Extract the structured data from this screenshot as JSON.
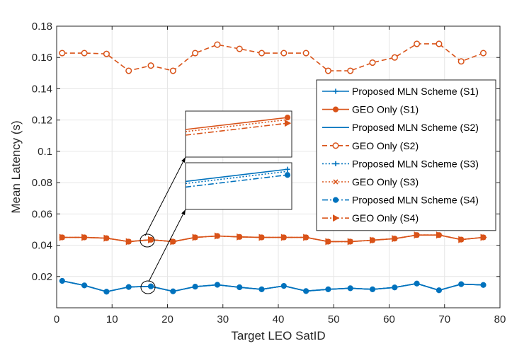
{
  "chart_data": {
    "type": "line",
    "title": "",
    "xlabel": "Target LEO SatID",
    "ylabel": "Mean Latency (s)",
    "xlim": [
      0,
      80
    ],
    "ylim": [
      0,
      0.18
    ],
    "xticks": [
      0,
      10,
      20,
      30,
      40,
      50,
      60,
      70,
      80
    ],
    "xtick_labels": [
      "0",
      "10",
      "20",
      "30",
      "40",
      "50",
      "60",
      "70",
      "80"
    ],
    "yticks": [
      0.02,
      0.04,
      0.06,
      0.08,
      0.1,
      0.12,
      0.14,
      0.16,
      0.18
    ],
    "ytick_labels": [
      "0.02",
      "0.04",
      "0.06",
      "0.08",
      "0.1",
      "0.12",
      "0.14",
      "0.16",
      "0.18"
    ],
    "grid": true,
    "legend_position": "right",
    "x": [
      1,
      5,
      9,
      13,
      17,
      21,
      25,
      29,
      33,
      37,
      41,
      45,
      49,
      53,
      57,
      61,
      65,
      69,
      73,
      77
    ],
    "series": [
      {
        "name": "Proposed MLN Scheme (S1)",
        "color": "#0072BD",
        "line": "solid",
        "marker": "plus",
        "values": [
          0.0172,
          0.0143,
          0.0103,
          0.0133,
          0.0137,
          0.0105,
          0.0135,
          0.0147,
          0.0131,
          0.0118,
          0.014,
          0.0107,
          0.0118,
          0.0125,
          0.0118,
          0.013,
          0.0155,
          0.0112,
          0.0151,
          0.0146
        ]
      },
      {
        "name": "GEO Only (S1)",
        "color": "#D95319",
        "line": "solid",
        "marker": "circle",
        "values": [
          0.045,
          0.045,
          0.0445,
          0.0423,
          0.0435,
          0.0423,
          0.045,
          0.0459,
          0.0453,
          0.045,
          0.045,
          0.045,
          0.0423,
          0.0423,
          0.0432,
          0.0442,
          0.0465,
          0.0465,
          0.0436,
          0.045
        ]
      },
      {
        "name": "Proposed MLN Scheme (S2)",
        "color": "#0072BD",
        "line": "solid",
        "marker": "none",
        "values": [
          0.0172,
          0.0143,
          0.0103,
          0.0133,
          0.0137,
          0.0105,
          0.0135,
          0.0147,
          0.0131,
          0.0118,
          0.014,
          0.0107,
          0.0118,
          0.0125,
          0.0118,
          0.013,
          0.0155,
          0.0112,
          0.0151,
          0.0146
        ]
      },
      {
        "name": "GEO Only (S2)",
        "color": "#D95319",
        "line": "dashed",
        "marker": "circle-open",
        "values": [
          0.1628,
          0.1628,
          0.1623,
          0.1515,
          0.1548,
          0.1515,
          0.1628,
          0.1682,
          0.1655,
          0.1628,
          0.1628,
          0.1628,
          0.1515,
          0.1515,
          0.1567,
          0.16,
          0.1687,
          0.1687,
          0.1575,
          0.1628
        ]
      },
      {
        "name": "Proposed MLN Scheme (S3)",
        "color": "#0072BD",
        "line": "dotted",
        "marker": "plus",
        "values": [
          0.0172,
          0.0143,
          0.0103,
          0.0133,
          0.0137,
          0.0105,
          0.0135,
          0.0147,
          0.0131,
          0.0118,
          0.014,
          0.0107,
          0.0118,
          0.0125,
          0.0118,
          0.013,
          0.0155,
          0.0112,
          0.0151,
          0.0146
        ]
      },
      {
        "name": "GEO Only (S3)",
        "color": "#D95319",
        "line": "dotted",
        "marker": "x",
        "values": [
          0.045,
          0.045,
          0.0445,
          0.0423,
          0.0435,
          0.0423,
          0.045,
          0.0459,
          0.0453,
          0.045,
          0.045,
          0.045,
          0.0423,
          0.0423,
          0.0432,
          0.0442,
          0.0465,
          0.0465,
          0.0436,
          0.045
        ]
      },
      {
        "name": "Proposed MLN Scheme (S4)",
        "color": "#0072BD",
        "line": "dashdot",
        "marker": "circle",
        "values": [
          0.0172,
          0.0143,
          0.0103,
          0.0133,
          0.0137,
          0.0105,
          0.0135,
          0.0147,
          0.0131,
          0.0118,
          0.014,
          0.0107,
          0.0118,
          0.0125,
          0.0118,
          0.013,
          0.0155,
          0.0112,
          0.0151,
          0.0146
        ]
      },
      {
        "name": "GEO Only (S4)",
        "color": "#D95319",
        "line": "dashdot",
        "marker": "triangle-right",
        "values": [
          0.045,
          0.045,
          0.0445,
          0.0423,
          0.0435,
          0.0423,
          0.045,
          0.0459,
          0.0453,
          0.045,
          0.045,
          0.045,
          0.0423,
          0.0423,
          0.0432,
          0.0442,
          0.0465,
          0.0465,
          0.0436,
          0.045
        ]
      }
    ],
    "annotations": [
      {
        "type": "zoom-inset",
        "target_x": 17,
        "target_series": "GEO Only",
        "shows": [
          "GEO Only (S1)",
          "GEO Only (S3)",
          "GEO Only (S4)"
        ]
      },
      {
        "type": "zoom-inset",
        "target_x": 17,
        "target_series": "Proposed MLN Scheme",
        "shows": [
          "Proposed MLN Scheme (S1)",
          "Proposed MLN Scheme (S3)",
          "Proposed MLN Scheme (S4)"
        ]
      }
    ]
  }
}
